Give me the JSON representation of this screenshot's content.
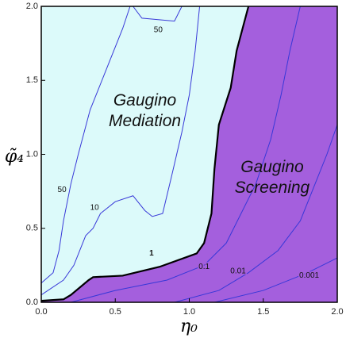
{
  "chart_data": {
    "type": "contour",
    "x_label": "η₀",
    "y_label": "φ̃₄",
    "xlim": [
      0,
      2
    ],
    "ylim": [
      0,
      2
    ],
    "xticks": [
      {
        "value": 0,
        "label": "0.0"
      },
      0.5,
      {
        "value": 1,
        "label": "1.0"
      },
      1.5,
      {
        "value": 2,
        "label": "2.0"
      }
    ],
    "yticks": [
      {
        "value": 0,
        "label": "0.0"
      },
      0.5,
      {
        "value": 1,
        "label": "1.0"
      },
      1.5,
      {
        "value": 2,
        "label": "2.0"
      }
    ],
    "region_colors": [
      "#dcfafa",
      "#a45fdd"
    ],
    "boundary": {
      "label": "1",
      "color": "#000000",
      "label_x": 0.745,
      "label_y": 0.33,
      "x": [
        0,
        0.15,
        0.2,
        0.32,
        0.35,
        0.55,
        0.8,
        1.05,
        1.1,
        1.15,
        1.17,
        1.2,
        1.28,
        1.32,
        1.4
      ],
      "y": [
        0.01,
        0.02,
        0.05,
        0.15,
        0.17,
        0.18,
        0.24,
        0.33,
        0.4,
        0.6,
        0.9,
        1.2,
        1.45,
        1.7,
        2.0
      ]
    },
    "series": [
      {
        "label": "50",
        "color": "#3838d8",
        "label_x": 0.14,
        "label_y": 0.76,
        "x": [
          0,
          0.08,
          0.12,
          0.15,
          0.2,
          0.25,
          0.33,
          0.45,
          0.55,
          0.6
        ],
        "y": [
          0.13,
          0.2,
          0.35,
          0.55,
          0.8,
          1.0,
          1.3,
          1.6,
          1.85,
          2.0
        ]
      },
      {
        "label": "50",
        "color": "#3838d8",
        "label_x": 0.79,
        "label_y": 1.84,
        "x": [
          0.62,
          0.68,
          0.9,
          0.95
        ],
        "y": [
          2.0,
          1.92,
          1.9,
          2.0
        ]
      },
      {
        "label": "10",
        "color": "#3838d8",
        "label_x": 0.36,
        "label_y": 0.64,
        "x": [
          0,
          0.15,
          0.22,
          0.3,
          0.35,
          0.4,
          0.5,
          0.62,
          0.7,
          0.75,
          0.82,
          0.88,
          0.95,
          1.0,
          1.04,
          1.07
        ],
        "y": [
          0.05,
          0.15,
          0.25,
          0.45,
          0.5,
          0.6,
          0.68,
          0.72,
          0.62,
          0.58,
          0.6,
          0.85,
          1.15,
          1.4,
          1.7,
          2.0
        ]
      },
      {
        "label": "0.1",
        "color": "#3838d8",
        "label_x": 1.1,
        "label_y": 0.24,
        "x": [
          0.2,
          0.5,
          0.85,
          1.1,
          1.25,
          1.35,
          1.45,
          1.55,
          1.62,
          1.68,
          1.75
        ],
        "y": [
          0.0,
          0.08,
          0.15,
          0.25,
          0.4,
          0.6,
          0.8,
          1.1,
          1.4,
          1.7,
          2.0
        ]
      },
      {
        "label": "0.01",
        "color": "#3838d8",
        "label_x": 1.33,
        "label_y": 0.21,
        "x": [
          0.9,
          1.2,
          1.4,
          1.6,
          1.75,
          1.85,
          1.93,
          2.0
        ],
        "y": [
          0.0,
          0.08,
          0.2,
          0.35,
          0.55,
          0.8,
          1.0,
          1.2
        ]
      },
      {
        "label": "0.001",
        "color": "#3838d8",
        "label_x": 1.81,
        "label_y": 0.18,
        "x": [
          1.17,
          1.5,
          1.8,
          2.0
        ],
        "y": [
          0.0,
          0.08,
          0.2,
          0.3
        ]
      }
    ],
    "annotations": [
      {
        "lines": [
          "Gaugino",
          "Mediation"
        ],
        "x": 0.7,
        "y": 1.29
      },
      {
        "lines": [
          "Gaugino",
          "Screening"
        ],
        "x": 1.56,
        "y": 0.84
      }
    ]
  }
}
